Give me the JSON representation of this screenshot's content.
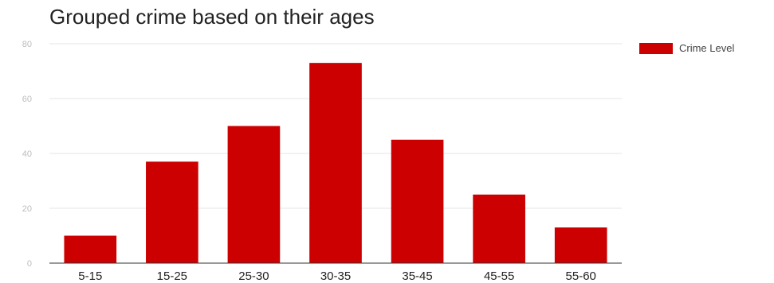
{
  "chart_data": {
    "type": "bar",
    "title": "Grouped crime based on their ages",
    "categories": [
      "5-15",
      "15-25",
      "25-30",
      "30-35",
      "35-45",
      "45-55",
      "55-60"
    ],
    "series": [
      {
        "name": "Crime Level",
        "values": [
          10,
          37,
          50,
          73,
          45,
          25,
          13
        ]
      }
    ],
    "xlabel": "",
    "ylabel": "",
    "ylim": [
      0,
      80
    ],
    "yticks": [
      0,
      20,
      40,
      60,
      80
    ],
    "grid": true,
    "legend_position": "right",
    "bar_color": "#cc0000"
  }
}
